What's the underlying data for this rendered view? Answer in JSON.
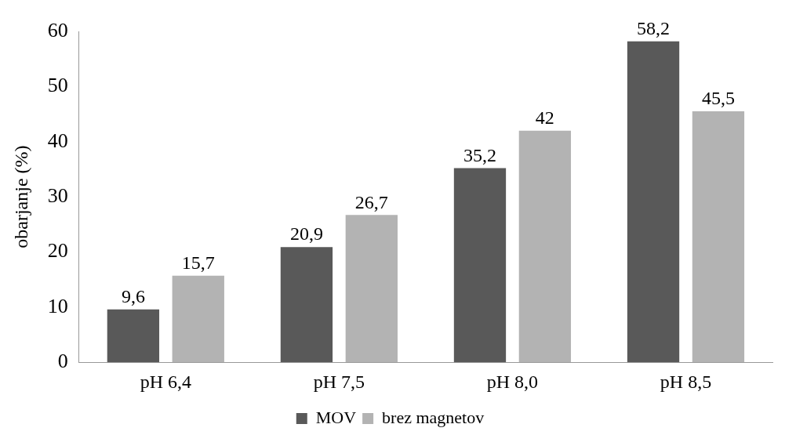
{
  "chart_data": {
    "type": "bar",
    "ylabel": "obarjanje (%)",
    "categories": [
      "pH 6,4",
      "pH 7,5",
      "pH 8,0",
      "pH 8,5"
    ],
    "series": [
      {
        "name": "MOV",
        "color": "#595959",
        "values": [
          9.6,
          20.9,
          35.2,
          58.2
        ],
        "value_labels": [
          "9,6",
          "20,9",
          "35,2",
          "58,2"
        ]
      },
      {
        "name": "brez magnetov",
        "color": "#b3b3b3",
        "values": [
          15.7,
          26.7,
          42,
          45.5
        ],
        "value_labels": [
          "15,7",
          "26,7",
          "42",
          "45,5"
        ]
      }
    ],
    "ylim": [
      0,
      60
    ],
    "yticks": [
      0,
      10,
      20,
      30,
      40,
      50,
      60
    ],
    "grid": false,
    "legend": "bottom"
  }
}
